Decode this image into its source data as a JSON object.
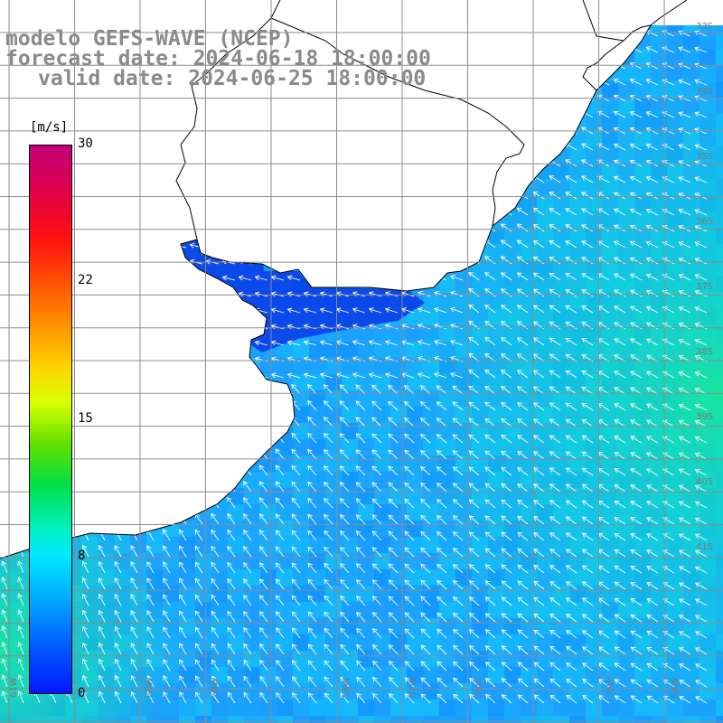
{
  "header": {
    "line1": "modelo GEFS-WAVE (NCEP)",
    "line2": "forecast date: 2024-06-18 18:00:00",
    "line3": "valid date: 2024-06-25 18:00:00"
  },
  "colorbar": {
    "unit": "[m/s]",
    "ticks": [
      {
        "label": "30",
        "value": 30
      },
      {
        "label": "22",
        "value": 22
      },
      {
        "label": "15",
        "value": 15
      },
      {
        "label": "8",
        "value": 8
      },
      {
        "label": "0",
        "value": 0
      }
    ],
    "colors": [
      "#c1007a",
      "#ff1010",
      "#ffd800",
      "#00e04a",
      "#00e8ff",
      "#0018ff"
    ]
  },
  "map": {
    "field": "wind speed",
    "ocean_base_color": "#1aa7ff",
    "land_color": "#ffffff",
    "grid_color": "#8c8c8c",
    "arrow_color": "#ffffff",
    "lat_labels": [
      "33S",
      "34S",
      "35S",
      "36S",
      "37S",
      "38S",
      "39S",
      "40S",
      "41S"
    ],
    "lon_labels": [
      "61W",
      "60W",
      "59W",
      "58W",
      "57W",
      "56W",
      "55W",
      "54W"
    ]
  }
}
